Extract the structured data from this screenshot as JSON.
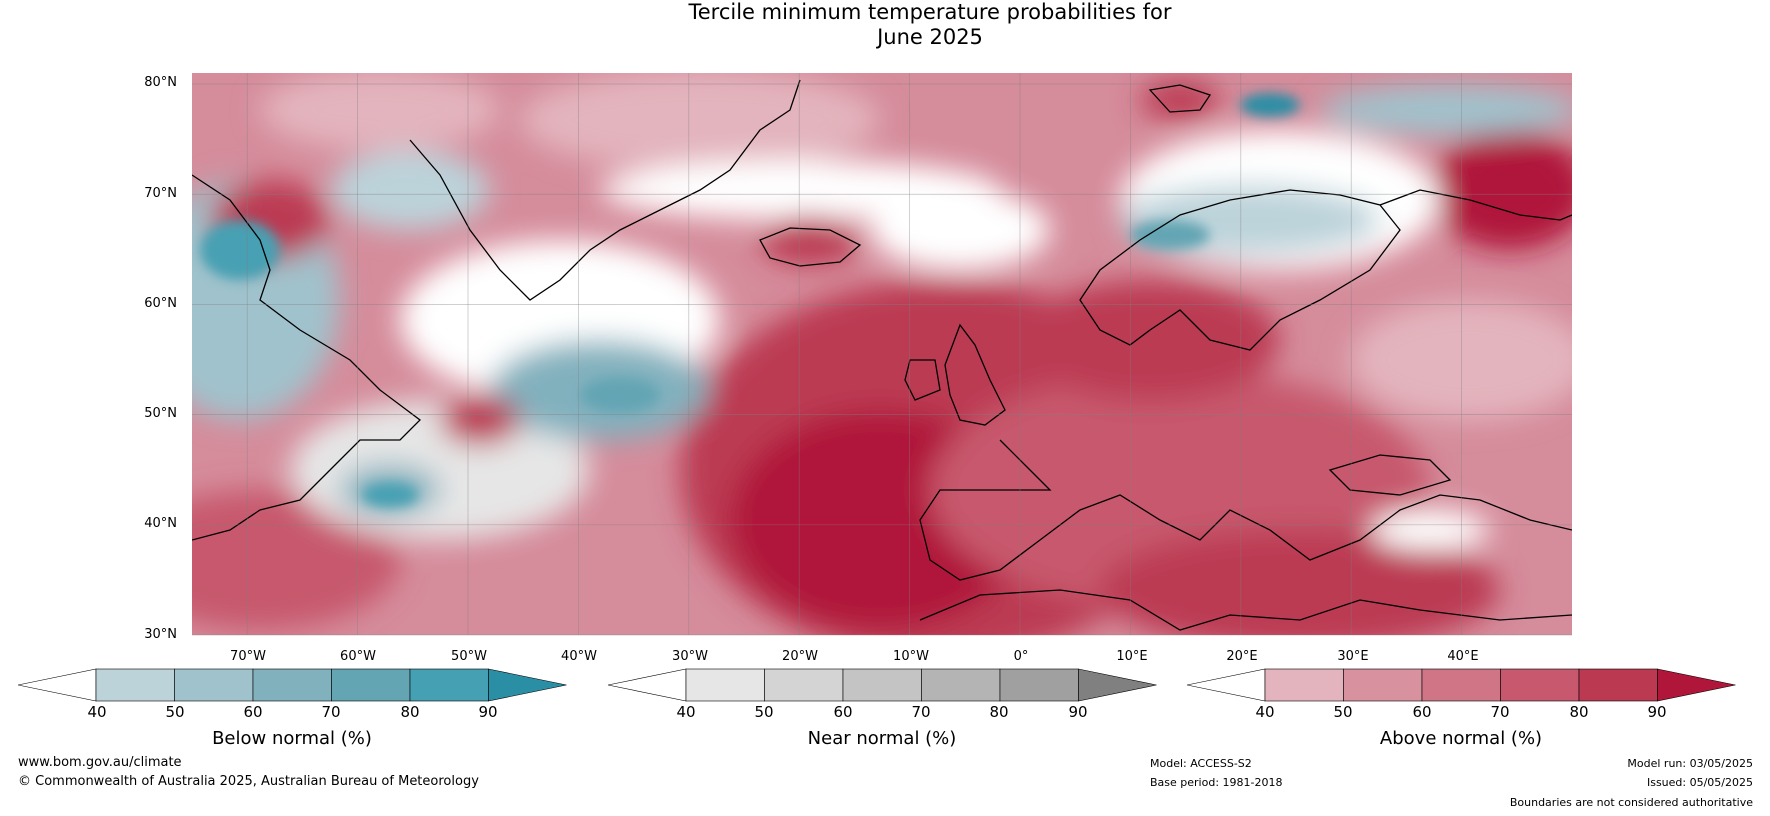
{
  "title_line1": "Tercile minimum temperature probabilities for",
  "title_line2": "June 2025",
  "map": {
    "projection": "equirectangular",
    "lon_range": [
      -75,
      50
    ],
    "lat_range": [
      30,
      81
    ],
    "latitude_labels": [
      "80°N",
      "70°N",
      "60°N",
      "50°N",
      "40°N",
      "30°N"
    ],
    "longitude_labels": [
      "70°W",
      "60°W",
      "50°W",
      "40°W",
      "30°W",
      "20°W",
      "10°W",
      "0°",
      "10°E",
      "20°E",
      "30°E",
      "40°E"
    ],
    "gridlines": true,
    "dominant_category": "Above normal across the North Atlantic and Europe; Below normal patches over Labrador / Newfoundland, NW Atlantic and northern Scandinavia"
  },
  "colorbars": [
    {
      "label": "Below normal (%)",
      "ticks": [
        "40",
        "50",
        "60",
        "70",
        "80",
        "90"
      ],
      "colors": [
        "#ffffff",
        "#bcd3da",
        "#a0c2cc",
        "#82b1be",
        "#64a5b4",
        "#46a0b3",
        "#2a8ea5"
      ]
    },
    {
      "label": "Near normal (%)",
      "ticks": [
        "40",
        "50",
        "60",
        "70",
        "80",
        "90"
      ],
      "colors": [
        "#ffffff",
        "#e6e6e6",
        "#d4d4d4",
        "#c4c4c4",
        "#b4b4b4",
        "#a0a0a0",
        "#808080"
      ]
    },
    {
      "label": "Above normal (%)",
      "ticks": [
        "40",
        "50",
        "60",
        "70",
        "80",
        "90"
      ],
      "colors": [
        "#ffffff",
        "#e3b4bd",
        "#d8929f",
        "#cf7585",
        "#c7586d",
        "#bb3a52",
        "#b0163a"
      ]
    }
  ],
  "footer": {
    "website": "www.bom.gov.au/climate",
    "copyright": "© Commonwealth of Australia 2025, Australian Bureau of Meteorology",
    "model": "Model: ACCESS-S2",
    "base_period": "Base period: 1981-2018",
    "model_run": "Model run: 03/05/2025",
    "issued": "Issued: 05/05/2025",
    "disclaimer": "Boundaries are not considered authoritative"
  }
}
